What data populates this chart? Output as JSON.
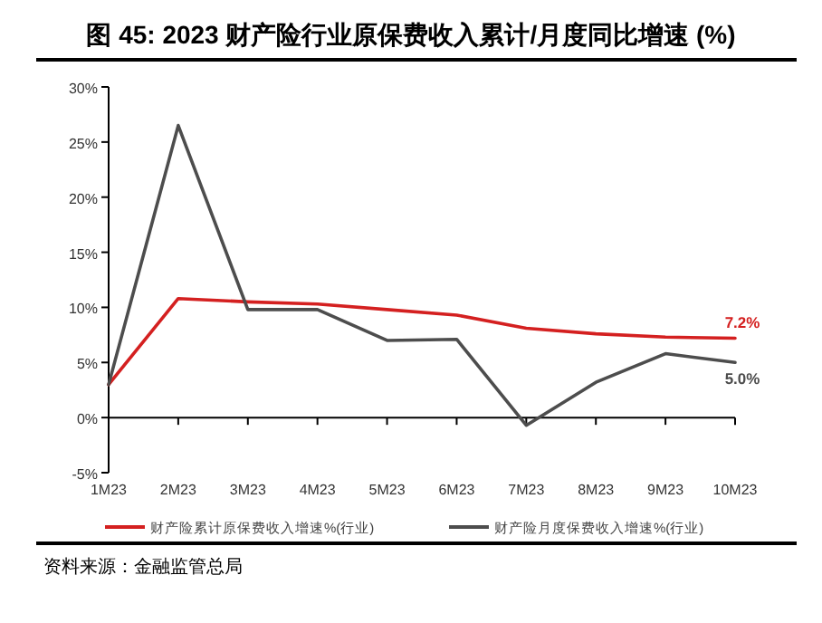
{
  "chart_data": {
    "type": "line",
    "title": "图 45: 2023 财产险行业原保费收入累计/月度同比增速 (%)",
    "categories": [
      "1M23",
      "2M23",
      "3M23",
      "4M23",
      "5M23",
      "6M23",
      "7M23",
      "8M23",
      "9M23",
      "10M23"
    ],
    "series": [
      {
        "name": "财产险累计原保费收入增速%(行业)",
        "color": "#d42020",
        "values": [
          3.0,
          10.8,
          10.5,
          10.3,
          9.8,
          9.3,
          8.1,
          7.6,
          7.3,
          7.2
        ],
        "value_labels": [
          null,
          null,
          null,
          null,
          null,
          null,
          null,
          null,
          null,
          "7.2%"
        ]
      },
      {
        "name": "财产险月度保费收入增速%(行业)",
        "color": "#4d4d4d",
        "values": [
          3.0,
          26.5,
          9.8,
          9.8,
          7.0,
          7.1,
          -0.7,
          3.2,
          5.8,
          5.0
        ],
        "value_labels": [
          null,
          null,
          null,
          null,
          null,
          null,
          null,
          null,
          null,
          "5.0%"
        ]
      }
    ],
    "ylim": [
      -5,
      30
    ],
    "yticks": [
      {
        "value": -5,
        "label": "-5%"
      },
      {
        "value": 0,
        "label": "0%"
      },
      {
        "value": 5,
        "label": "5%"
      },
      {
        "value": 10,
        "label": "10%"
      },
      {
        "value": 15,
        "label": "15%"
      },
      {
        "value": 20,
        "label": "20%"
      },
      {
        "value": 25,
        "label": "25%"
      },
      {
        "value": 30,
        "label": "30%"
      }
    ],
    "legend": "bottom",
    "marker": "none",
    "line_style": "solid",
    "annotations": [
      "资料来源：金融监管总局"
    ]
  }
}
